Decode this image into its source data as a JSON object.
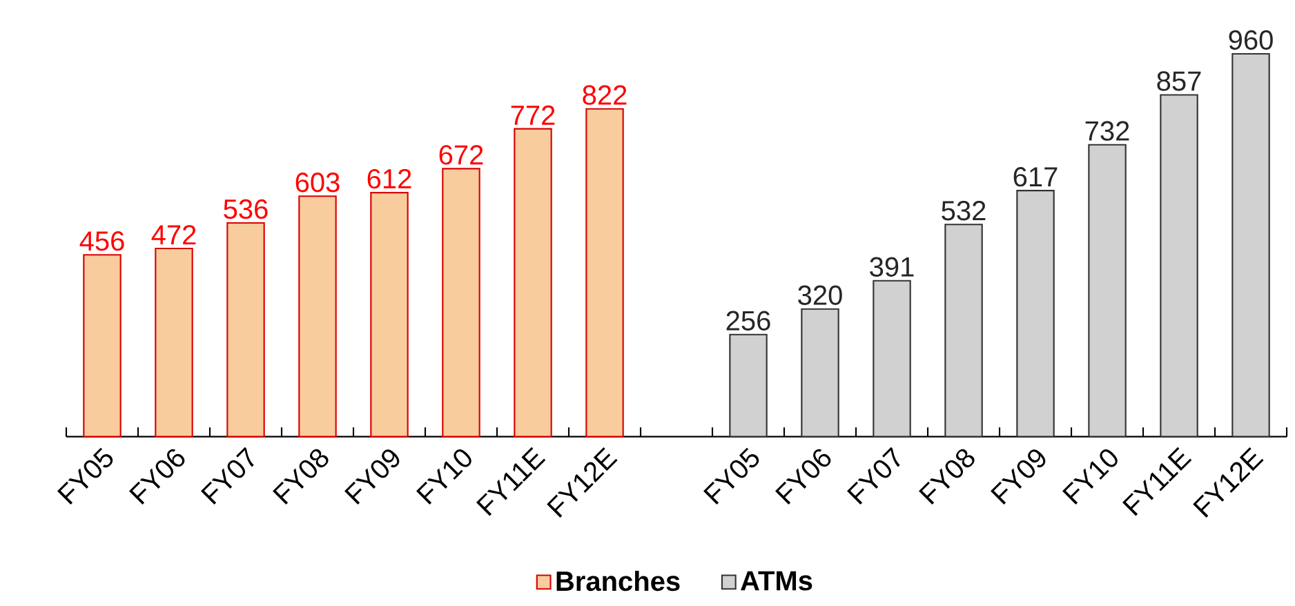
{
  "chart_data": {
    "type": "bar",
    "categories": [
      "FY05",
      "FY06",
      "FY07",
      "FY08",
      "FY09",
      "FY10",
      "FY11E",
      "FY12E",
      null,
      "FY05",
      "FY06",
      "FY07",
      "FY08",
      "FY09",
      "FY10",
      "FY11E",
      "FY12E"
    ],
    "series": [
      {
        "name": "Branches",
        "color": "#f9cc9d",
        "values": [
          456,
          472,
          536,
          603,
          612,
          672,
          772,
          822,
          null,
          null,
          null,
          null,
          null,
          null,
          null,
          null,
          null
        ]
      },
      {
        "name": "ATMs",
        "color": "#d1d1d1",
        "values": [
          null,
          null,
          null,
          null,
          null,
          null,
          null,
          null,
          null,
          256,
          320,
          391,
          532,
          617,
          732,
          857,
          960
        ]
      }
    ],
    "ylim": [
      0,
      960
    ],
    "tick_labels": "x",
    "data_labels": true,
    "legend": "bottom"
  }
}
